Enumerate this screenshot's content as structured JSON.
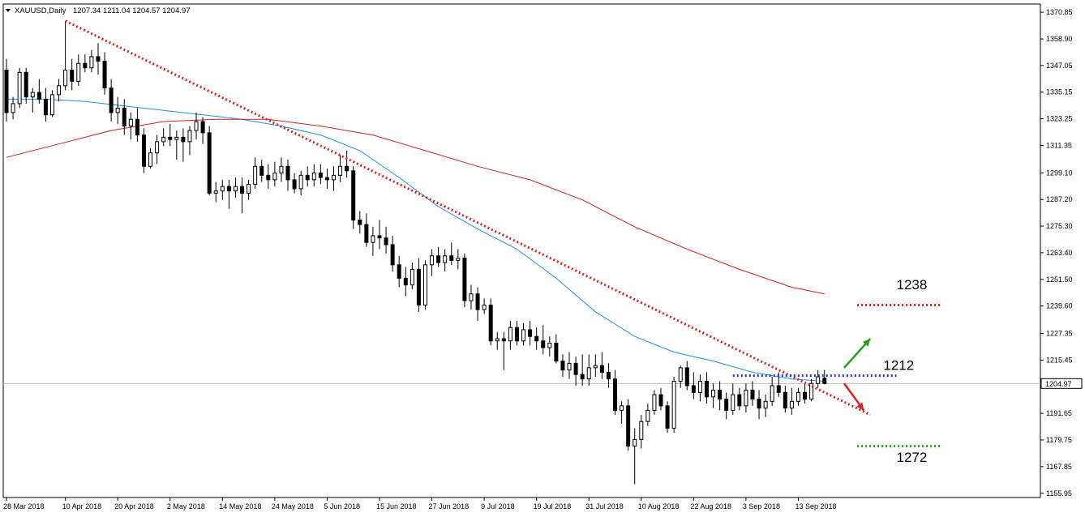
{
  "header": {
    "symbol": "XAUUSD,Daily",
    "ohlc": "1207.34 1211.04 1204.57 1204.97",
    "menu_icon": "triangle-down-icon"
  },
  "chart_data": {
    "type": "candlestick",
    "y_axis": {
      "side": "right",
      "ylim": [
        1154.05,
        1374.5
      ],
      "ticks": [
        1370.85,
        1358.9,
        1347.05,
        1335.15,
        1323.25,
        1311.35,
        1299.1,
        1287.2,
        1275.3,
        1263.4,
        1251.5,
        1239.6,
        1227.35,
        1215.45,
        1191.65,
        1179.75,
        1167.85,
        1155.95
      ],
      "current_price": 1204.97,
      "current_price_label": "1204.97"
    },
    "x_axis": {
      "ticks": [
        "28 Mar 2018",
        "10 Apr 2018",
        "20 Apr 2018",
        "2 May 2018",
        "14 May 2018",
        "24 May 2018",
        "5 Jun 2018",
        "15 Jun 2018",
        "27 Jun 2018",
        "9 Jul 2018",
        "19 Jul 2018",
        "31 Jul 2018",
        "10 Aug 2018",
        "22 Aug 2018",
        "3 Sep 2018",
        "13 Sep 2018"
      ],
      "tick_bar_index": [
        0,
        9,
        17,
        25,
        33,
        41,
        49,
        57,
        65,
        73,
        81,
        89,
        97,
        105,
        113,
        121
      ]
    },
    "grid": false,
    "candles": [
      [
        1345,
        1350,
        1322,
        1326
      ],
      [
        1326,
        1333,
        1323,
        1330
      ],
      [
        1330,
        1346,
        1328,
        1344
      ],
      [
        1344,
        1346,
        1330,
        1333
      ],
      [
        1333,
        1337,
        1326,
        1335
      ],
      [
        1335,
        1341,
        1330,
        1332
      ],
      [
        1332,
        1337,
        1322,
        1325
      ],
      [
        1325,
        1336,
        1324,
        1334
      ],
      [
        1334,
        1341,
        1331,
        1338
      ],
      [
        1338,
        1367,
        1336,
        1345
      ],
      [
        1345,
        1350,
        1336,
        1340
      ],
      [
        1340,
        1352,
        1338,
        1348
      ],
      [
        1348,
        1352,
        1344,
        1346
      ],
      [
        1346,
        1354,
        1344,
        1351
      ],
      [
        1351,
        1357,
        1343,
        1349
      ],
      [
        1349,
        1353,
        1334,
        1337
      ],
      [
        1337,
        1341,
        1322,
        1326
      ],
      [
        1326,
        1333,
        1321,
        1328
      ],
      [
        1328,
        1332,
        1316,
        1320
      ],
      [
        1320,
        1326,
        1314,
        1323
      ],
      [
        1323,
        1328,
        1313,
        1316
      ],
      [
        1316,
        1319,
        1299,
        1302
      ],
      [
        1302,
        1310,
        1301,
        1308
      ],
      [
        1308,
        1316,
        1303,
        1313
      ],
      [
        1313,
        1319,
        1311,
        1315
      ],
      [
        1315,
        1321,
        1311,
        1314
      ],
      [
        1314,
        1318,
        1305,
        1315
      ],
      [
        1315,
        1319,
        1304,
        1313
      ],
      [
        1313,
        1320,
        1307,
        1318
      ],
      [
        1318,
        1326,
        1314,
        1322
      ],
      [
        1322,
        1324,
        1312,
        1317
      ],
      [
        1317,
        1320,
        1289,
        1290
      ],
      [
        1290,
        1295,
        1286,
        1291
      ],
      [
        1291,
        1296,
        1287,
        1293
      ],
      [
        1293,
        1296,
        1283,
        1291
      ],
      [
        1291,
        1297,
        1288,
        1293
      ],
      [
        1293,
        1297,
        1281,
        1290
      ],
      [
        1290,
        1296,
        1287,
        1294
      ],
      [
        1294,
        1306,
        1292,
        1302
      ],
      [
        1302,
        1305,
        1295,
        1298
      ],
      [
        1298,
        1303,
        1292,
        1296
      ],
      [
        1296,
        1304,
        1293,
        1299
      ],
      [
        1299,
        1306,
        1295,
        1302
      ],
      [
        1302,
        1305,
        1291,
        1296
      ],
      [
        1296,
        1299,
        1290,
        1292
      ],
      [
        1292,
        1300,
        1289,
        1298
      ],
      [
        1298,
        1302,
        1293,
        1296
      ],
      [
        1296,
        1303,
        1293,
        1299
      ],
      [
        1299,
        1303,
        1294,
        1297
      ],
      [
        1297,
        1301,
        1292,
        1296
      ],
      [
        1296,
        1302,
        1291,
        1298
      ],
      [
        1298,
        1307,
        1295,
        1302
      ],
      [
        1302,
        1309,
        1297,
        1300
      ],
      [
        1300,
        1302,
        1274,
        1278
      ],
      [
        1278,
        1282,
        1272,
        1276
      ],
      [
        1276,
        1281,
        1266,
        1268
      ],
      [
        1268,
        1275,
        1262,
        1271
      ],
      [
        1271,
        1278,
        1265,
        1270
      ],
      [
        1270,
        1275,
        1263,
        1267
      ],
      [
        1267,
        1271,
        1255,
        1258
      ],
      [
        1258,
        1262,
        1248,
        1252
      ],
      [
        1252,
        1257,
        1244,
        1249
      ],
      [
        1249,
        1259,
        1247,
        1256
      ],
      [
        1256,
        1261,
        1237,
        1240
      ],
      [
        1240,
        1260,
        1238,
        1258
      ],
      [
        1258,
        1265,
        1253,
        1262
      ],
      [
        1262,
        1266,
        1257,
        1259
      ],
      [
        1259,
        1265,
        1255,
        1262
      ],
      [
        1262,
        1268,
        1258,
        1260
      ],
      [
        1260,
        1265,
        1256,
        1261
      ],
      [
        1261,
        1263,
        1239,
        1242
      ],
      [
        1242,
        1249,
        1238,
        1245
      ],
      [
        1245,
        1248,
        1233,
        1238
      ],
      [
        1238,
        1243,
        1236,
        1240
      ],
      [
        1240,
        1243,
        1222,
        1224
      ],
      [
        1224,
        1228,
        1220,
        1225
      ],
      [
        1225,
        1228,
        1211,
        1224
      ],
      [
        1224,
        1233,
        1220,
        1230
      ],
      [
        1230,
        1233,
        1222,
        1224
      ],
      [
        1224,
        1232,
        1222,
        1229
      ],
      [
        1229,
        1233,
        1222,
        1226
      ],
      [
        1226,
        1230,
        1220,
        1224
      ],
      [
        1224,
        1231,
        1218,
        1221
      ],
      [
        1221,
        1226,
        1217,
        1223
      ],
      [
        1223,
        1227,
        1214,
        1215
      ],
      [
        1215,
        1218,
        1208,
        1211
      ],
      [
        1211,
        1219,
        1207,
        1214
      ],
      [
        1214,
        1217,
        1204,
        1209
      ],
      [
        1209,
        1218,
        1204,
        1207
      ],
      [
        1207,
        1218,
        1204,
        1212
      ],
      [
        1212,
        1218,
        1208,
        1213
      ],
      [
        1213,
        1219,
        1207,
        1210
      ],
      [
        1210,
        1214,
        1203,
        1207
      ],
      [
        1207,
        1211,
        1191,
        1193
      ],
      [
        1193,
        1197,
        1187,
        1195
      ],
      [
        1195,
        1198,
        1175,
        1177
      ],
      [
        1177,
        1185,
        1160,
        1180
      ],
      [
        1180,
        1191,
        1176,
        1188
      ],
      [
        1188,
        1196,
        1186,
        1193
      ],
      [
        1193,
        1202,
        1191,
        1200
      ],
      [
        1200,
        1203,
        1193,
        1195
      ],
      [
        1195,
        1197,
        1183,
        1185
      ],
      [
        1185,
        1208,
        1183,
        1206
      ],
      [
        1206,
        1213,
        1203,
        1212
      ],
      [
        1212,
        1215,
        1202,
        1204
      ],
      [
        1204,
        1210,
        1198,
        1201
      ],
      [
        1201,
        1209,
        1197,
        1206
      ],
      [
        1206,
        1210,
        1196,
        1199
      ],
      [
        1199,
        1205,
        1194,
        1202
      ],
      [
        1202,
        1206,
        1193,
        1198
      ],
      [
        1198,
        1201,
        1189,
        1193
      ],
      [
        1193,
        1205,
        1191,
        1200
      ],
      [
        1200,
        1203,
        1193,
        1195
      ],
      [
        1195,
        1205,
        1192,
        1202
      ],
      [
        1202,
        1206,
        1195,
        1198
      ],
      [
        1198,
        1202,
        1189,
        1194
      ],
      [
        1194,
        1200,
        1190,
        1197
      ],
      [
        1197,
        1208,
        1195,
        1204
      ],
      [
        1204,
        1210,
        1199,
        1201
      ],
      [
        1201,
        1204,
        1192,
        1194
      ],
      [
        1194,
        1203,
        1191,
        1197
      ],
      [
        1197,
        1203,
        1195,
        1201
      ],
      [
        1201,
        1205,
        1196,
        1198
      ],
      [
        1198,
        1207,
        1197,
        1205
      ],
      [
        1205,
        1211,
        1203,
        1208
      ],
      [
        1207.34,
        1211.04,
        1204.57,
        1204.97
      ]
    ],
    "moving_averages": [
      {
        "color": "#1f8fe0",
        "x": [
          0,
          6,
          12,
          18,
          24,
          30,
          36,
          42,
          48,
          54,
          60,
          66,
          72,
          78,
          84,
          90,
          96,
          102,
          108,
          114,
          120,
          125
        ],
        "y": [
          1332,
          1332,
          1331,
          1329,
          1327,
          1325,
          1323,
          1320,
          1316,
          1309,
          1297,
          1284,
          1274,
          1265,
          1252,
          1237,
          1226,
          1219,
          1215,
          1210,
          1207,
          1206
        ]
      },
      {
        "color": "#d02020",
        "x": [
          0,
          8,
          16,
          24,
          32,
          40,
          48,
          56,
          64,
          72,
          80,
          88,
          96,
          104,
          112,
          120,
          125
        ],
        "y": [
          1306,
          1312,
          1318,
          1322,
          1323,
          1323,
          1320,
          1316,
          1309,
          1302,
          1296,
          1287,
          1275,
          1265,
          1256,
          1248,
          1245
        ]
      }
    ],
    "trendlines": [
      {
        "style": "dotted",
        "color": "#e02020",
        "x": [
          9,
          132
        ],
        "y": [
          1367,
          1191
        ]
      },
      {
        "style": "dotted",
        "color": "#2030e0",
        "x": [
          111,
          136
        ],
        "y": [
          1208.5,
          1208.5
        ]
      },
      {
        "style": "dotted",
        "color": "#e02020",
        "x": [
          130,
          143
        ],
        "y": [
          1240,
          1240
        ]
      },
      {
        "style": "dotted",
        "color": "#20a020",
        "x": [
          130,
          143
        ],
        "y": [
          1177,
          1177
        ]
      }
    ],
    "arrows": [
      {
        "color": "#20a020",
        "from": [
          128,
          1212
        ],
        "to": [
          132,
          1225
        ]
      },
      {
        "color": "#e02020",
        "from": [
          128,
          1205
        ],
        "to": [
          131,
          1193
        ]
      }
    ],
    "annotations": [
      {
        "text": "1238",
        "x": 136,
        "y": 1247
      },
      {
        "text": "1212",
        "x": 134,
        "y": 1211
      },
      {
        "text": "1272",
        "x": 136,
        "y": 1170
      }
    ]
  }
}
